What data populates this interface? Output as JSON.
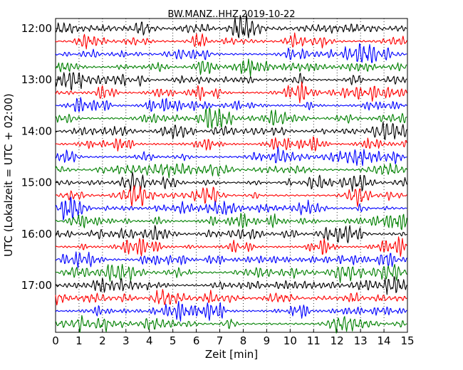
{
  "chart_data": {
    "type": "line",
    "title": "BW.MANZ..HHZ 2019-10-22",
    "xlabel": "Zeit  [min]",
    "ylabel": "UTC (Lokalzeit = UTC + 02:00)",
    "xlim": [
      0,
      15
    ],
    "x_ticks": [
      "0",
      "1",
      "2",
      "3",
      "4",
      "5",
      "6",
      "7",
      "8",
      "9",
      "10",
      "11",
      "12",
      "13",
      "14",
      "15"
    ],
    "y_tick_labels": [
      "12:00",
      "13:00",
      "14:00",
      "15:00",
      "16:00",
      "17:00"
    ],
    "grid": {
      "vertical_dotted": true
    },
    "trace_interval_min": 15,
    "trace_colors": [
      "#000000",
      "#ff0000",
      "#0000ff",
      "#008000"
    ],
    "traces_start": "12:00",
    "trace_count": 24
  }
}
